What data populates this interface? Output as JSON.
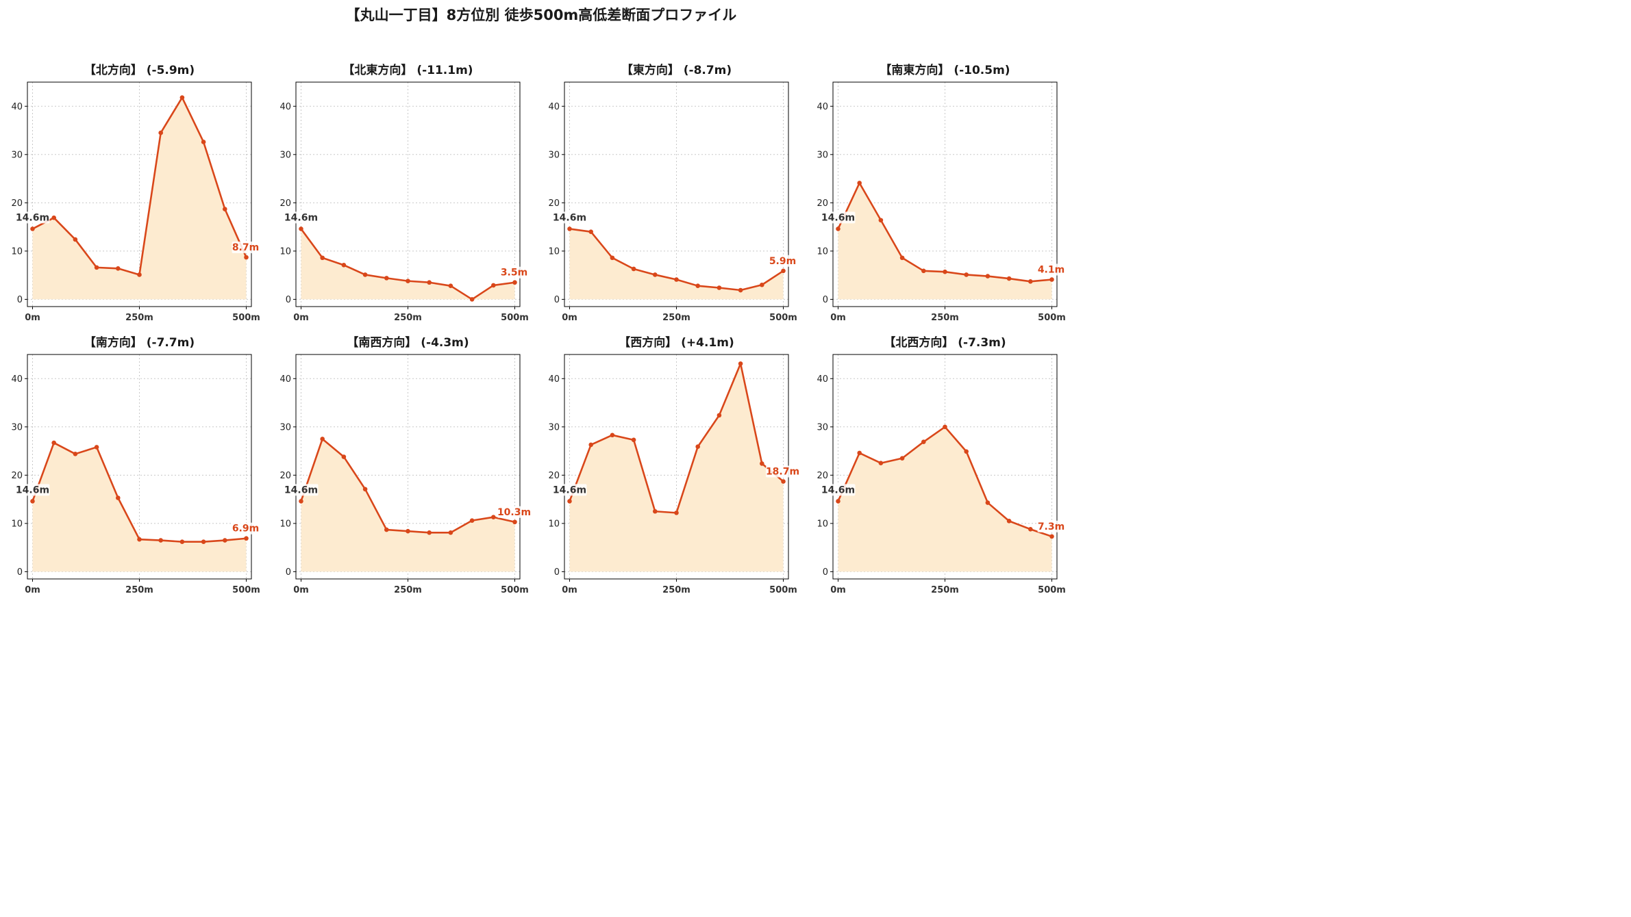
{
  "figure": {
    "title": "【丸山一丁目】8方位別 徒歩500m高低差断面プロファイル",
    "line_color": "#d9471a",
    "fill_color": "#fdebd0",
    "start_label_color": "#333333",
    "end_label_color": "#d9471a"
  },
  "chart_data": [
    {
      "type": "line",
      "title": "【北方向】 (-5.9m)",
      "x": [
        0,
        50,
        100,
        150,
        200,
        250,
        300,
        350,
        400,
        450,
        500
      ],
      "y": [
        14.6,
        16.9,
        12.4,
        6.6,
        6.4,
        5.1,
        34.5,
        41.8,
        32.6,
        18.7,
        8.7
      ],
      "xticks": [
        "0m",
        "250m",
        "500m"
      ],
      "yticks": [
        0,
        10,
        20,
        30,
        40
      ],
      "ylim": [
        -1.5,
        45
      ],
      "xlim": [
        -12,
        512
      ],
      "start_label": "14.6m",
      "end_label": "8.7m",
      "grid": true
    },
    {
      "type": "line",
      "title": "【北東方向】 (-11.1m)",
      "x": [
        0,
        50,
        100,
        150,
        200,
        250,
        300,
        350,
        400,
        450,
        500
      ],
      "y": [
        14.6,
        8.6,
        7.1,
        5.1,
        4.4,
        3.8,
        3.5,
        2.8,
        0.0,
        2.9,
        3.5
      ],
      "xticks": [
        "0m",
        "250m",
        "500m"
      ],
      "yticks": [
        0,
        10,
        20,
        30,
        40
      ],
      "ylim": [
        -1.5,
        45
      ],
      "xlim": [
        -12,
        512
      ],
      "start_label": "14.6m",
      "end_label": "3.5m",
      "grid": true
    },
    {
      "type": "line",
      "title": "【東方向】 (-8.7m)",
      "x": [
        0,
        50,
        100,
        150,
        200,
        250,
        300,
        350,
        400,
        450,
        500
      ],
      "y": [
        14.6,
        14.0,
        8.6,
        6.3,
        5.1,
        4.1,
        2.8,
        2.4,
        1.9,
        3.0,
        5.9
      ],
      "xticks": [
        "0m",
        "250m",
        "500m"
      ],
      "yticks": [
        0,
        10,
        20,
        30,
        40
      ],
      "ylim": [
        -1.5,
        45
      ],
      "xlim": [
        -12,
        512
      ],
      "start_label": "14.6m",
      "end_label": "5.9m",
      "grid": true
    },
    {
      "type": "line",
      "title": "【南東方向】 (-10.5m)",
      "x": [
        0,
        50,
        100,
        150,
        200,
        250,
        300,
        350,
        400,
        450,
        500
      ],
      "y": [
        14.6,
        24.1,
        16.4,
        8.6,
        5.9,
        5.7,
        5.1,
        4.8,
        4.3,
        3.7,
        4.1
      ],
      "xticks": [
        "0m",
        "250m",
        "500m"
      ],
      "yticks": [
        0,
        10,
        20,
        30,
        40
      ],
      "ylim": [
        -1.5,
        45
      ],
      "xlim": [
        -12,
        512
      ],
      "start_label": "14.6m",
      "end_label": "4.1m",
      "grid": true
    },
    {
      "type": "line",
      "title": "【南方向】 (-7.7m)",
      "x": [
        0,
        50,
        100,
        150,
        200,
        250,
        300,
        350,
        400,
        450,
        500
      ],
      "y": [
        14.6,
        26.7,
        24.4,
        25.8,
        15.3,
        6.7,
        6.5,
        6.2,
        6.2,
        6.5,
        6.9
      ],
      "xticks": [
        "0m",
        "250m",
        "500m"
      ],
      "yticks": [
        0,
        10,
        20,
        30,
        40
      ],
      "ylim": [
        -1.5,
        45
      ],
      "xlim": [
        -12,
        512
      ],
      "start_label": "14.6m",
      "end_label": "6.9m",
      "grid": true
    },
    {
      "type": "line",
      "title": "【南西方向】 (-4.3m)",
      "x": [
        0,
        50,
        100,
        150,
        200,
        250,
        300,
        350,
        400,
        450,
        500
      ],
      "y": [
        14.6,
        27.5,
        23.8,
        17.1,
        8.7,
        8.4,
        8.1,
        8.1,
        10.6,
        11.3,
        10.3
      ],
      "xticks": [
        "0m",
        "250m",
        "500m"
      ],
      "yticks": [
        0,
        10,
        20,
        30,
        40
      ],
      "ylim": [
        -1.5,
        45
      ],
      "xlim": [
        -12,
        512
      ],
      "start_label": "14.6m",
      "end_label": "10.3m",
      "grid": true
    },
    {
      "type": "line",
      "title": "【西方向】 (+4.1m)",
      "x": [
        0,
        50,
        100,
        150,
        200,
        250,
        300,
        350,
        400,
        450,
        500
      ],
      "y": [
        14.6,
        26.3,
        28.3,
        27.3,
        12.5,
        12.2,
        25.9,
        32.4,
        43.1,
        22.4,
        18.7
      ],
      "xticks": [
        "0m",
        "250m",
        "500m"
      ],
      "yticks": [
        0,
        10,
        20,
        30,
        40
      ],
      "ylim": [
        -1.5,
        45
      ],
      "xlim": [
        -12,
        512
      ],
      "start_label": "14.6m",
      "end_label": "18.7m",
      "grid": true
    },
    {
      "type": "line",
      "title": "【北西方向】 (-7.3m)",
      "x": [
        0,
        50,
        100,
        150,
        200,
        250,
        300,
        350,
        400,
        450,
        500
      ],
      "y": [
        14.6,
        24.6,
        22.5,
        23.5,
        26.9,
        30.0,
        24.9,
        14.3,
        10.5,
        8.8,
        7.3
      ],
      "xticks": [
        "0m",
        "250m",
        "500m"
      ],
      "yticks": [
        0,
        10,
        20,
        30,
        40
      ],
      "ylim": [
        -1.5,
        45
      ],
      "xlim": [
        -12,
        512
      ],
      "start_label": "14.6m",
      "end_label": "7.3m",
      "grid": true
    }
  ]
}
